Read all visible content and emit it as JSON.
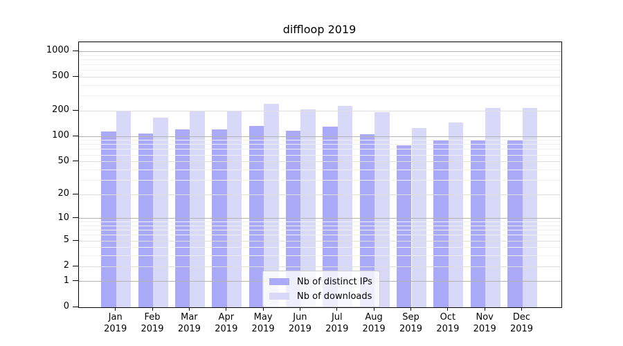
{
  "page": {
    "background": "#ffffff"
  },
  "chart_data": {
    "type": "bar",
    "title": "diffloop 2019",
    "categories": [
      "Jan 2019",
      "Feb 2019",
      "Mar 2019",
      "Apr 2019",
      "May 2019",
      "Jun 2019",
      "Jul 2019",
      "Aug 2019",
      "Sep 2019",
      "Oct 2019",
      "Nov 2019",
      "Dec 2019"
    ],
    "series": [
      {
        "name": "Nb of distinct IPs",
        "color": "#aaaaf8",
        "values": [
          115,
          108,
          122,
          120,
          134,
          116,
          131,
          107,
          78,
          90,
          91,
          90
        ]
      },
      {
        "name": "Nb of downloads",
        "color": "#d8d8f8",
        "values": [
          201,
          166,
          197,
          197,
          242,
          209,
          228,
          193,
          126,
          147,
          218,
          218
        ]
      }
    ],
    "xlabel": "",
    "ylabel": "",
    "y_axis": {
      "scale": "log1p",
      "ylim": [
        0,
        1000
      ],
      "ticks": [
        0,
        1,
        2,
        5,
        10,
        20,
        50,
        100,
        200,
        500,
        1000
      ],
      "major_gridlines": [
        1,
        10,
        100,
        1000
      ],
      "mid_gridlines": [
        2,
        5,
        20,
        50,
        200,
        500
      ],
      "minor_gridlines": [
        3,
        4,
        6,
        7,
        8,
        9,
        30,
        40,
        60,
        70,
        80,
        90,
        300,
        400,
        600,
        700,
        800,
        900
      ]
    },
    "grid": {
      "major_color": "#b3b3b3",
      "mid_color": "#dfdfdf",
      "minor_color": "#efefef"
    },
    "legend_position": "bottom-center-inside"
  }
}
